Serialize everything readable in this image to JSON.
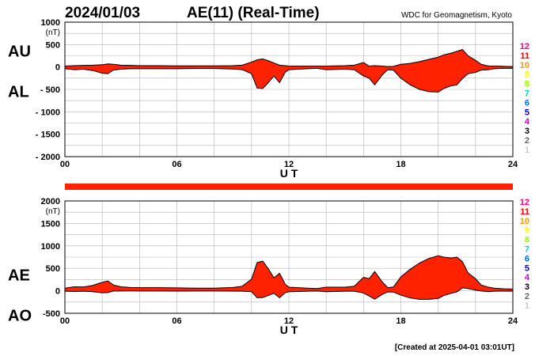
{
  "header": {
    "date": "2024/01/03",
    "title": "AE(11) (Real-Time)",
    "source": "WDC for Geomagnetism, Kyoto"
  },
  "footer": {
    "created": "[Created at 2025-04-01 03:01UT]"
  },
  "xaxis": {
    "label": "U T",
    "ticks": [
      "00",
      "06",
      "12",
      "18",
      "24"
    ],
    "range": [
      0,
      24
    ]
  },
  "station_legend": {
    "labels": [
      "12",
      "11",
      "10",
      "9",
      "8",
      "7",
      "6",
      "5",
      "4",
      "3",
      "2",
      "1"
    ],
    "colors": [
      "#ff0080",
      "#ff0000",
      "#ff9900",
      "#ffff00",
      "#99ff00",
      "#00cccc",
      "#0066ff",
      "#0000cc",
      "#cc00cc",
      "#000000",
      "#666666",
      "#cccccc"
    ]
  },
  "colors": {
    "fill": "#ff2200",
    "outline": "#000000",
    "grid": "#b3b3b3",
    "status_bar": "#ff2200"
  },
  "chart_data": [
    {
      "type": "area",
      "panel": "AU/AL",
      "series_labels": [
        "AU",
        "AL"
      ],
      "yunit": "(nT)",
      "ylim": [
        -2000,
        1000
      ],
      "yticks": [
        "1000",
        "500",
        "0",
        "- 500",
        "- 1000",
        "- 1500",
        "- 2000"
      ],
      "grid": true,
      "x": [
        0,
        0.5,
        1,
        1.5,
        2,
        2.3,
        2.6,
        3,
        3.5,
        4,
        5,
        6,
        7,
        8,
        9,
        9.5,
        10,
        10.3,
        10.6,
        10.9,
        11.2,
        11.5,
        11.8,
        12,
        12.5,
        13,
        13.5,
        14,
        15,
        15.5,
        16,
        16.3,
        16.6,
        17,
        17.3,
        17.6,
        18,
        18.5,
        19,
        19.5,
        20,
        20.3,
        20.7,
        21,
        21.3,
        21.6,
        22,
        22.3,
        22.7,
        23,
        23.5,
        24
      ],
      "au": [
        20,
        30,
        35,
        40,
        50,
        70,
        60,
        40,
        35,
        30,
        30,
        25,
        25,
        25,
        30,
        40,
        110,
        160,
        180,
        140,
        90,
        40,
        30,
        20,
        20,
        20,
        20,
        20,
        30,
        40,
        100,
        20,
        30,
        20,
        10,
        15,
        60,
        80,
        120,
        170,
        220,
        270,
        310,
        350,
        390,
        250,
        150,
        60,
        20,
        20,
        15,
        10
      ],
      "al": [
        -40,
        -60,
        -50,
        -80,
        -140,
        -150,
        -70,
        -50,
        -40,
        -40,
        -40,
        -40,
        -35,
        -35,
        -45,
        -60,
        -150,
        -470,
        -480,
        -350,
        -200,
        -350,
        -120,
        -60,
        -50,
        -40,
        -30,
        -60,
        -50,
        -60,
        -200,
        -250,
        -400,
        -180,
        -60,
        -70,
        -250,
        -400,
        -500,
        -550,
        -560,
        -480,
        -420,
        -400,
        -260,
        -150,
        -120,
        -70,
        -60,
        -40,
        -30,
        -30
      ]
    },
    {
      "type": "area",
      "panel": "AE/AO",
      "series_labels": [
        "AE",
        "AO"
      ],
      "yunit": "(nT)",
      "ylim": [
        -500,
        2000
      ],
      "yticks": [
        "2000",
        "1500",
        "1000",
        "500",
        "0",
        "-500"
      ],
      "grid": true,
      "x": [
        0,
        0.5,
        1,
        1.5,
        2,
        2.3,
        2.6,
        3,
        3.5,
        4,
        5,
        6,
        7,
        8,
        9,
        9.5,
        10,
        10.3,
        10.6,
        10.9,
        11.2,
        11.5,
        11.8,
        12,
        12.5,
        13,
        13.5,
        14,
        15,
        15.5,
        16,
        16.3,
        16.6,
        17,
        17.3,
        17.6,
        18,
        18.5,
        19,
        19.5,
        20,
        20.3,
        20.7,
        21,
        21.3,
        21.6,
        22,
        22.3,
        22.7,
        23,
        23.5,
        24
      ],
      "ae": [
        60,
        90,
        85,
        120,
        190,
        220,
        130,
        90,
        75,
        70,
        70,
        65,
        60,
        60,
        75,
        100,
        260,
        630,
        660,
        490,
        290,
        390,
        150,
        80,
        70,
        60,
        50,
        80,
        80,
        100,
        300,
        270,
        430,
        200,
        70,
        85,
        310,
        480,
        620,
        720,
        780,
        750,
        730,
        750,
        650,
        400,
        270,
        130,
        80,
        60,
        45,
        40
      ],
      "ao": [
        -10,
        -15,
        -10,
        -20,
        -45,
        -40,
        -5,
        -5,
        -3,
        -5,
        -5,
        -8,
        -5,
        -5,
        -8,
        -10,
        -20,
        -155,
        -150,
        -105,
        -55,
        -155,
        -45,
        -20,
        -15,
        -10,
        -5,
        -20,
        -10,
        -10,
        -50,
        -115,
        -185,
        -80,
        -25,
        -28,
        -95,
        -160,
        -190,
        -190,
        -170,
        -105,
        -55,
        -25,
        65,
        50,
        15,
        -5,
        -20,
        -10,
        -8,
        -10
      ]
    }
  ]
}
